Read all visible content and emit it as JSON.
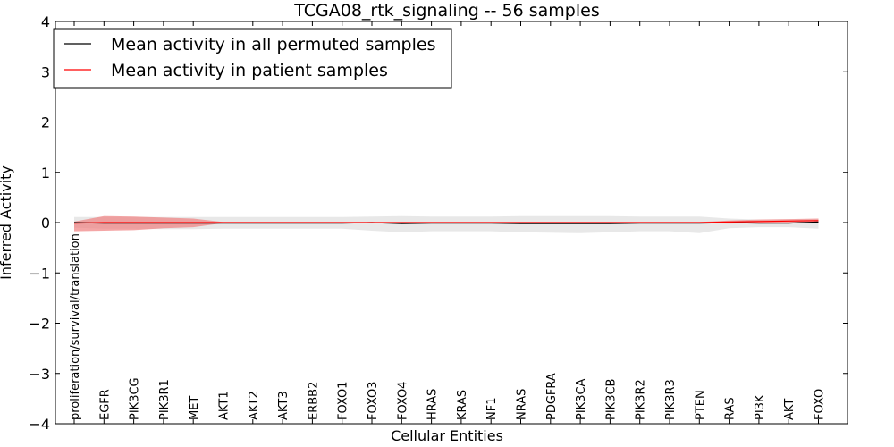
{
  "chart_data": {
    "type": "line",
    "title": "TCGA08_rtk_signaling -- 56 samples",
    "xlabel": "Cellular Entities",
    "ylabel": "Inferred Activity",
    "ylim": [
      -4,
      4
    ],
    "yticks": [
      "−4",
      "−3",
      "−2",
      "−1",
      "0",
      "1",
      "2",
      "3",
      "4"
    ],
    "ytick_values": [
      -4,
      -3,
      -2,
      -1,
      0,
      1,
      2,
      3,
      4
    ],
    "grid": false,
    "legend_position": "top-left",
    "categories": [
      "proliferation/survival/translation",
      "EGFR",
      "PIK3CG",
      "PIK3R1",
      "MET",
      "AKT1",
      "AKT2",
      "AKT3",
      "ERBB2",
      "FOXO1",
      "FOXO3",
      "FOXO4",
      "HRAS",
      "KRAS",
      "NF1",
      "NRAS",
      "PDGFRA",
      "PIK3CA",
      "PIK3CB",
      "PIK3R2",
      "PIK3R3",
      "PTEN",
      "RAS",
      "PI3K",
      "AKT",
      "FOXO"
    ],
    "series": [
      {
        "name": "Mean activity in all permuted samples",
        "color": "#000000",
        "band_color": "#d9d9d9",
        "values": [
          0.0,
          -0.01,
          -0.01,
          -0.01,
          -0.01,
          -0.01,
          -0.01,
          -0.01,
          -0.01,
          -0.01,
          0.0,
          -0.02,
          -0.01,
          -0.01,
          -0.01,
          -0.02,
          -0.02,
          -0.02,
          -0.02,
          -0.01,
          -0.01,
          -0.01,
          0.0,
          -0.01,
          -0.01,
          0.01
        ],
        "band_upper": [
          0.11,
          0.11,
          0.11,
          0.11,
          0.11,
          0.11,
          0.11,
          0.11,
          0.11,
          0.11,
          0.12,
          0.13,
          0.12,
          0.12,
          0.12,
          0.13,
          0.13,
          0.13,
          0.13,
          0.12,
          0.12,
          0.12,
          0.08,
          0.06,
          0.06,
          0.06
        ],
        "band_lower": [
          -0.1,
          -0.12,
          -0.12,
          -0.13,
          -0.13,
          -0.12,
          -0.12,
          -0.12,
          -0.12,
          -0.12,
          -0.16,
          -0.19,
          -0.17,
          -0.17,
          -0.17,
          -0.19,
          -0.2,
          -0.21,
          -0.19,
          -0.17,
          -0.17,
          -0.21,
          -0.11,
          -0.09,
          -0.09,
          -0.12
        ]
      },
      {
        "name": "Mean activity in patient samples",
        "color": "#ff0000",
        "band_color": "#f08080",
        "values": [
          -0.01,
          0.0,
          0.0,
          0.0,
          0.0,
          0.0,
          0.0,
          0.0,
          0.0,
          0.0,
          0.0,
          0.0,
          0.0,
          0.0,
          0.0,
          0.0,
          0.0,
          0.0,
          0.0,
          0.0,
          0.0,
          0.0,
          0.01,
          0.02,
          0.03,
          0.04
        ],
        "band_upper": [
          0.02,
          0.13,
          0.12,
          0.1,
          0.08,
          0.01,
          0.01,
          0.01,
          0.01,
          0.01,
          0.01,
          0.01,
          0.01,
          0.01,
          0.01,
          0.01,
          0.01,
          0.01,
          0.01,
          0.01,
          0.01,
          0.01,
          0.04,
          0.06,
          0.07,
          0.08
        ],
        "band_lower": [
          -0.17,
          -0.16,
          -0.15,
          -0.11,
          -0.09,
          -0.01,
          -0.01,
          -0.01,
          -0.01,
          -0.01,
          -0.01,
          -0.01,
          -0.01,
          -0.01,
          -0.01,
          -0.01,
          -0.01,
          -0.01,
          -0.01,
          -0.01,
          -0.01,
          -0.01,
          -0.02,
          -0.01,
          0.0,
          0.02
        ]
      }
    ]
  }
}
